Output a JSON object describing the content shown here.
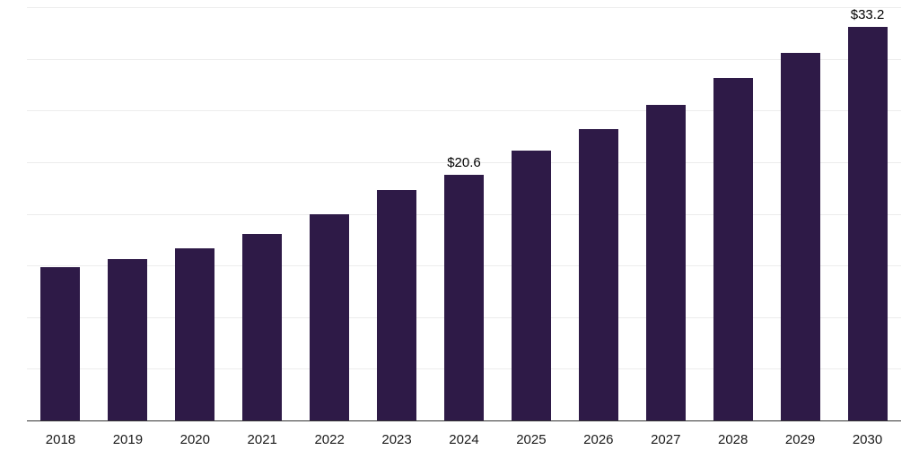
{
  "chart_data": {
    "type": "bar",
    "title": "",
    "xlabel": "",
    "ylabel": "",
    "categories": [
      "2018",
      "2019",
      "2020",
      "2021",
      "2022",
      "2023",
      "2024",
      "2025",
      "2026",
      "2027",
      "2028",
      "2029",
      "2030"
    ],
    "values": [
      12.8,
      13.5,
      14.4,
      15.6,
      17.3,
      19.3,
      20.6,
      22.6,
      24.4,
      26.4,
      28.7,
      30.8,
      33.2
    ],
    "data_labels": [
      {
        "category": "2024",
        "text": "$20.6"
      },
      {
        "category": "2030",
        "text": "$33.2"
      }
    ],
    "ylim": [
      0,
      34.6
    ],
    "grid": true,
    "grid_divisions": 8,
    "legend": "none",
    "bar_color": "#2e1a47",
    "gridline_color": "#ececec",
    "axis_line_color": "#333333",
    "tick_label_color": "#1a1a1a",
    "value_label_color": "#000000"
  }
}
